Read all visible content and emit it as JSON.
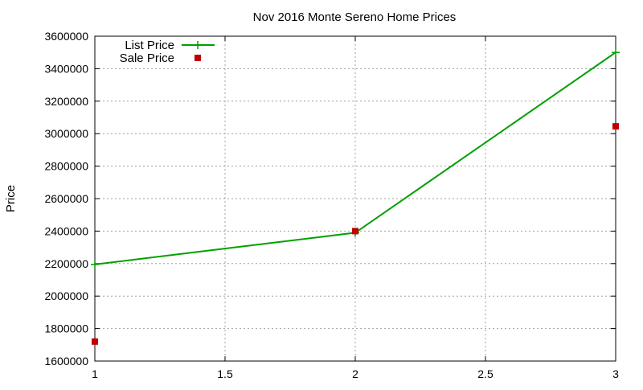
{
  "chart_data": {
    "type": "line",
    "title": "Nov 2016 Monte Sereno Home Prices",
    "xlabel": "",
    "ylabel": "Price",
    "xlim": [
      1,
      3
    ],
    "ylim": [
      1600000,
      3600000
    ],
    "x_ticks": [
      1,
      1.5,
      2,
      2.5,
      3
    ],
    "x_tick_labels": [
      "1",
      "1.5",
      "2",
      "2.5",
      "3"
    ],
    "y_ticks": [
      1600000,
      1800000,
      2000000,
      2200000,
      2400000,
      2600000,
      2800000,
      3000000,
      3200000,
      3400000,
      3600000
    ],
    "y_tick_labels": [
      "1600000",
      "1800000",
      "2000000",
      "2200000",
      "2400000",
      "2600000",
      "2800000",
      "3000000",
      "3200000",
      "3400000",
      "3600000"
    ],
    "grid": true,
    "legend_position": "top-left",
    "series": [
      {
        "name": "List Price",
        "style": "line-with-plus-markers",
        "color": "#00a000",
        "x": [
          1,
          2,
          3
        ],
        "y": [
          2195000,
          2390000,
          3500000
        ]
      },
      {
        "name": "Sale Price",
        "style": "square-markers",
        "color": "#c00000",
        "x": [
          1,
          2,
          3
        ],
        "y": [
          1720000,
          2400000,
          3045000
        ]
      }
    ]
  }
}
